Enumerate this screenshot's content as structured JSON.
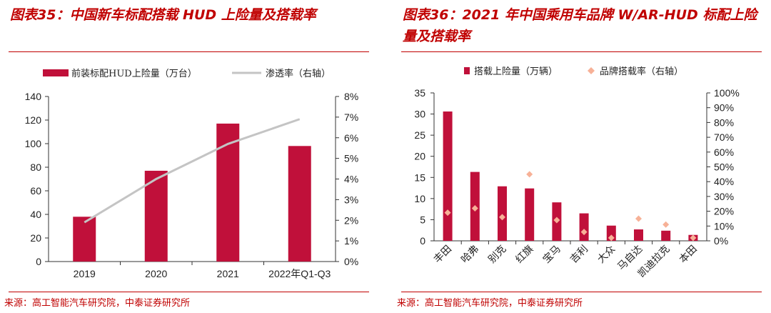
{
  "colors": {
    "accent": "#c00000",
    "bar": "#c0103a",
    "line": "#c4c4c4",
    "diamond": "#f7b197",
    "axis": "#333333"
  },
  "left": {
    "title": "图表35：中国新车标配搭载 HUD 上险量及搭载率",
    "source": "来源：高工智能汽车研究院，中泰证券研究所",
    "chart_data": {
      "type": "bar",
      "title": "中国新车标配搭载 HUD 上险量及搭载率",
      "categories": [
        "2019",
        "2020",
        "2021",
        "2022年Q1-Q3"
      ],
      "series": [
        {
          "name": "前装标配HUD上险量（万台）",
          "type": "bar",
          "axis": "left",
          "values": [
            38,
            77,
            117,
            98
          ]
        },
        {
          "name": "渗透率（右轴）",
          "type": "line",
          "axis": "right",
          "values": [
            1.9,
            4.0,
            5.7,
            6.9
          ]
        }
      ],
      "ylim_left": [
        0,
        140
      ],
      "yticks_left": [
        "0",
        "20",
        "40",
        "60",
        "80",
        "100",
        "120",
        "140"
      ],
      "ylim_right": [
        0,
        8
      ],
      "yticks_right": [
        "0%",
        "1%",
        "2%",
        "3%",
        "4%",
        "5%",
        "6%",
        "7%",
        "8%"
      ],
      "legend": "top"
    }
  },
  "right": {
    "title": "图表36：2021 年中国乘用车品牌 W/AR-HUD 标配上险量及搭载率",
    "source": "来源：高工智能汽车研究院，中泰证券研究所",
    "chart_data": {
      "type": "bar",
      "title": "2021 年中国乘用车品牌 W/AR-HUD 标配上险量及搭载率",
      "categories": [
        "丰田",
        "哈弗",
        "别克",
        "红旗",
        "宝马",
        "吉利",
        "大众",
        "马自达",
        "凯迪拉克",
        "本田"
      ],
      "series": [
        {
          "name": "搭载上险量（万辆）",
          "type": "bar",
          "axis": "left",
          "values": [
            30.6,
            16.3,
            12.9,
            12.4,
            9.1,
            6.5,
            3.6,
            2.7,
            2.4,
            1.4
          ]
        },
        {
          "name": "品牌搭载率（右轴）",
          "type": "scatter",
          "axis": "right",
          "values": [
            19,
            22,
            16,
            45,
            14,
            6,
            2,
            15,
            11,
            2
          ]
        }
      ],
      "ylim_left": [
        0,
        35
      ],
      "yticks_left": [
        "0",
        "5",
        "10",
        "15",
        "20",
        "25",
        "30",
        "35"
      ],
      "ylim_right": [
        0,
        100
      ],
      "yticks_right": [
        "0%",
        "10%",
        "20%",
        "30%",
        "40%",
        "50%",
        "60%",
        "70%",
        "80%",
        "90%",
        "100%"
      ],
      "legend": "top"
    }
  }
}
